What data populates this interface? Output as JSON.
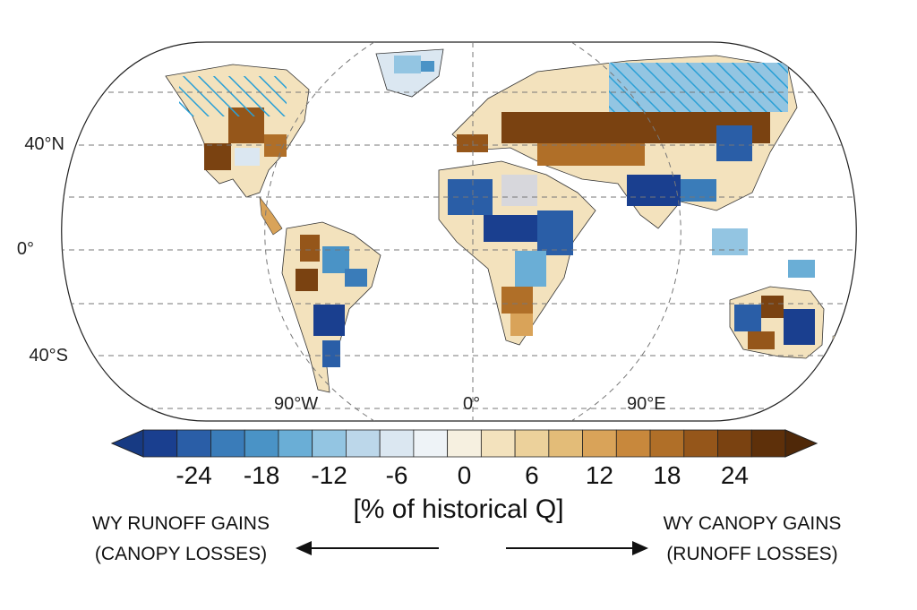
{
  "lat_labels": [
    "40°N",
    "0°",
    "40°S"
  ],
  "lon_labels": [
    "90°W",
    "0°",
    "90°E"
  ],
  "colorbar": {
    "ticks": [
      "-24",
      "-18",
      "-12",
      "-6",
      "0",
      "6",
      "12",
      "18",
      "24"
    ],
    "unit_label": "[% of historical Q]",
    "colors": [
      "#1a3f8f",
      "#2a5ea7",
      "#3a7cb9",
      "#4a93c6",
      "#6aaed6",
      "#93c5e2",
      "#bcd7ea",
      "#dbe7f1",
      "#eef3f7",
      "#f6f0e0",
      "#f3e2bd",
      "#ecd19b",
      "#e3bc78",
      "#d9a359",
      "#c8883c",
      "#b06f28",
      "#95561a",
      "#7a4211",
      "#5e300a"
    ],
    "under_color": "#173a83",
    "over_color": "#4f2808"
  },
  "captions": {
    "left_line1": "WY RUNOFF GAINS",
    "left_line2": "(CANOPY LOSSES)",
    "right_line1": "WY CANOPY GAINS",
    "right_line2": "(RUNOFF LOSSES)"
  }
}
